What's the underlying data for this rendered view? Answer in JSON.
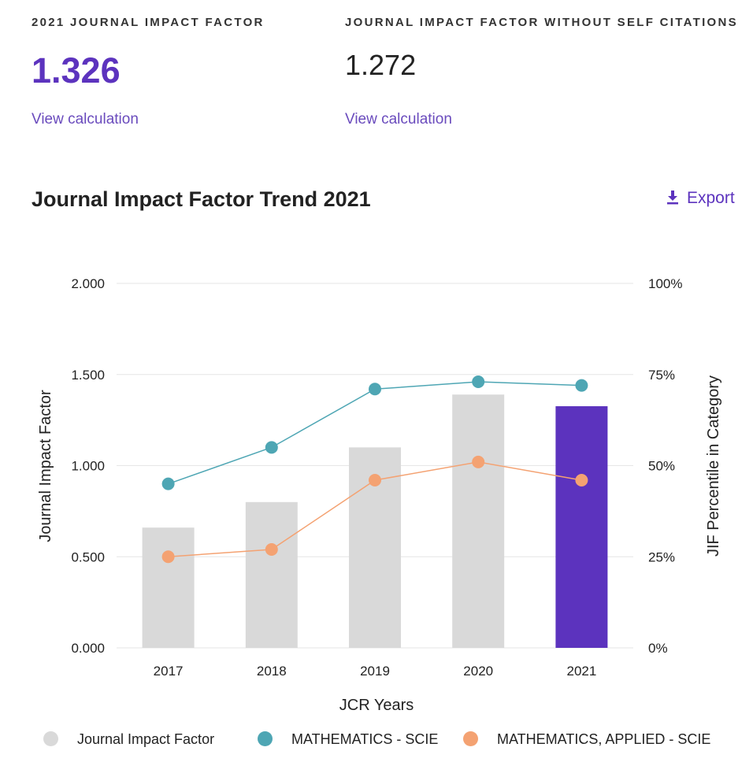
{
  "metrics": [
    {
      "label": "2021 JOURNAL IMPACT FACTOR",
      "value": "1.326",
      "link": "View calculation"
    },
    {
      "label": "JOURNAL IMPACT FACTOR WITHOUT SELF CITATIONS",
      "value": "1.272",
      "link": "View calculation"
    }
  ],
  "chart_title": "Journal Impact Factor Trend 2021",
  "export_label": "Export",
  "colors": {
    "accent": "#5c33be",
    "bar_default": "#d9d9d9",
    "bar_highlight": "#5c33be",
    "series_scie": "#4ea6b4",
    "series_applied": "#f4a272",
    "grid": "#e6e6e6"
  },
  "chart_data": {
    "type": "bar",
    "categories": [
      "2017",
      "2018",
      "2019",
      "2020",
      "2021"
    ],
    "title": "Journal Impact Factor Trend 2021",
    "xlabel": "JCR Years",
    "ylabel": "Journal Impact Factor",
    "y2label": "JIF Percentile in Category",
    "ylim": [
      0,
      2
    ],
    "y2lim": [
      0,
      100
    ],
    "yticks": [
      "0.000",
      "0.500",
      "1.000",
      "1.500",
      "2.000"
    ],
    "y2ticks": [
      "0%",
      "25%",
      "50%",
      "75%",
      "100%"
    ],
    "grid": true,
    "legend_position": "bottom",
    "highlight_category": "2021",
    "series": [
      {
        "name": "Journal Impact Factor",
        "type": "bar",
        "axis": "left",
        "values": [
          0.66,
          0.8,
          1.1,
          1.39,
          1.326
        ]
      },
      {
        "name": "MATHEMATICS - SCIE",
        "type": "line",
        "axis": "right",
        "values": [
          45,
          55,
          71,
          73,
          72
        ]
      },
      {
        "name": "MATHEMATICS, APPLIED - SCIE",
        "type": "line",
        "axis": "right",
        "values": [
          25,
          27,
          46,
          51,
          46
        ]
      }
    ]
  }
}
